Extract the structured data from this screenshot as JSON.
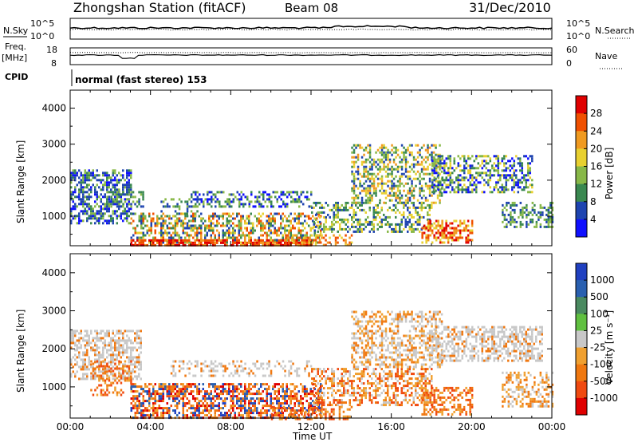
{
  "header": {
    "station": "Zhongshan Station (fitACF)",
    "beam": "Beam 08",
    "date": "31/Dec/2010"
  },
  "top_panels": {
    "nsky_label": "N.Sky",
    "nsky_ticks": [
      "10^5",
      "10^0"
    ],
    "nsearch_label": "N.Search",
    "nsearch_ticks": [
      "10^5",
      "10^0"
    ],
    "freq_label": "Freq.",
    "freq_unit": "[MHz]",
    "freq_ticks": [
      "18",
      "8"
    ],
    "nave_label": "Nave",
    "nave_ticks": [
      "60",
      "0"
    ],
    "cpid_label": "CPID",
    "cpid_text": "normal (fast stereo) 153"
  },
  "axes": {
    "ylabel": "Slant Range [km]",
    "xlabel": "Time UT",
    "yticks": [
      "4000",
      "3000",
      "2000",
      "1000"
    ],
    "xticks": [
      "00:00",
      "04:00",
      "08:00",
      "12:00",
      "16:00",
      "20:00",
      "00:00"
    ]
  },
  "power_scale": {
    "label": "Power [dB]",
    "ticks": [
      "28",
      "24",
      "20",
      "16",
      "12",
      "8",
      "4"
    ],
    "colors": [
      "#e00000",
      "#f05000",
      "#f09a20",
      "#e8d030",
      "#88b848",
      "#3a8850",
      "#1e44b0",
      "#1010ff"
    ]
  },
  "velocity_scale": {
    "label": "Velocity [m s⁻¹]",
    "ticks": [
      "1000",
      "500",
      "100",
      "25",
      "-25",
      "-100",
      "-500",
      "-1000"
    ],
    "colors": [
      "#2040c0",
      "#2a60b0",
      "#4a8a60",
      "#60c040",
      "#c8c8c8",
      "#f0a030",
      "#f07810",
      "#f04a10",
      "#e00000"
    ]
  },
  "chart_data": [
    {
      "type": "heatmap",
      "panel": "power",
      "x_range": [
        "00:00",
        "24:00"
      ],
      "y_range": [
        180,
        4500
      ],
      "blobs": [
        {
          "t0": 0.0,
          "t1": 3.0,
          "r0": 800,
          "r1": 2300,
          "dens": 0.55,
          "cls": [
            5,
            6,
            4,
            6,
            7
          ]
        },
        {
          "t0": 1.8,
          "t1": 3.6,
          "r0": 1300,
          "r1": 1700,
          "dens": 0.35,
          "cls": [
            6,
            5,
            4
          ]
        },
        {
          "t0": 4.5,
          "t1": 6.5,
          "r0": 700,
          "r1": 1500,
          "dens": 0.3,
          "cls": [
            6,
            5,
            4
          ]
        },
        {
          "t0": 6.0,
          "t1": 12.0,
          "r0": 1300,
          "r1": 1700,
          "dens": 0.45,
          "cls": [
            6,
            5,
            7,
            4
          ]
        },
        {
          "t0": 3.0,
          "t1": 12.5,
          "r0": 250,
          "r1": 1100,
          "dens": 0.5,
          "cls": [
            3,
            2,
            4,
            5,
            1,
            6
          ]
        },
        {
          "t0": 3.0,
          "t1": 12.0,
          "r0": 180,
          "r1": 360,
          "dens": 0.75,
          "cls": [
            0,
            1,
            2,
            0,
            1
          ]
        },
        {
          "t0": 12.0,
          "t1": 18.0,
          "r0": 600,
          "r1": 1400,
          "dens": 0.4,
          "cls": [
            6,
            5,
            4,
            3
          ]
        },
        {
          "t0": 14.0,
          "t1": 18.5,
          "r0": 1400,
          "r1": 3000,
          "dens": 0.45,
          "cls": [
            4,
            3,
            5,
            6,
            2
          ]
        },
        {
          "t0": 17.5,
          "t1": 20.0,
          "r0": 300,
          "r1": 900,
          "dens": 0.55,
          "cls": [
            1,
            2,
            0,
            3
          ]
        },
        {
          "t0": 18.0,
          "t1": 23.0,
          "r0": 1700,
          "r1": 2700,
          "dens": 0.5,
          "cls": [
            5,
            4,
            6,
            3,
            7
          ]
        },
        {
          "t0": 21.5,
          "t1": 24.0,
          "r0": 700,
          "r1": 1400,
          "dens": 0.45,
          "cls": [
            6,
            5,
            4
          ]
        },
        {
          "t0": 10.5,
          "t1": 14.0,
          "r0": 200,
          "r1": 500,
          "dens": 0.35,
          "cls": [
            2,
            1,
            3
          ]
        }
      ]
    },
    {
      "type": "heatmap",
      "panel": "velocity",
      "x_range": [
        "00:00",
        "24:00"
      ],
      "y_range": [
        180,
        4500
      ],
      "blobs": [
        {
          "t0": 0.0,
          "t1": 3.5,
          "r0": 1200,
          "r1": 2500,
          "dens": 0.55,
          "cls": [
            4,
            4,
            4,
            6
          ]
        },
        {
          "t0": 1.0,
          "t1": 3.0,
          "r0": 800,
          "r1": 1700,
          "dens": 0.35,
          "cls": [
            6,
            5,
            7
          ]
        },
        {
          "t0": 3.0,
          "t1": 12.5,
          "r0": 180,
          "r1": 1100,
          "dens": 0.6,
          "cls": [
            6,
            6,
            7,
            5,
            1,
            0,
            8
          ]
        },
        {
          "t0": 5.0,
          "t1": 12.0,
          "r0": 1300,
          "r1": 1700,
          "dens": 0.3,
          "cls": [
            4,
            4,
            6
          ]
        },
        {
          "t0": 12.0,
          "t1": 18.0,
          "r0": 500,
          "r1": 1500,
          "dens": 0.45,
          "cls": [
            6,
            5,
            7,
            4
          ]
        },
        {
          "t0": 14.0,
          "t1": 18.5,
          "r0": 1500,
          "r1": 3000,
          "dens": 0.45,
          "cls": [
            6,
            4,
            4,
            5
          ]
        },
        {
          "t0": 18.0,
          "t1": 23.5,
          "r0": 1700,
          "r1": 2600,
          "dens": 0.55,
          "cls": [
            4,
            4,
            4,
            4,
            6
          ]
        },
        {
          "t0": 17.5,
          "t1": 20.0,
          "r0": 300,
          "r1": 1000,
          "dens": 0.5,
          "cls": [
            6,
            5,
            7
          ]
        },
        {
          "t0": 21.5,
          "t1": 24.0,
          "r0": 500,
          "r1": 1400,
          "dens": 0.45,
          "cls": [
            6,
            5,
            4
          ]
        },
        {
          "t0": 10.0,
          "t1": 14.0,
          "r0": 180,
          "r1": 500,
          "dens": 0.35,
          "cls": [
            5,
            6,
            7
          ]
        }
      ]
    }
  ]
}
